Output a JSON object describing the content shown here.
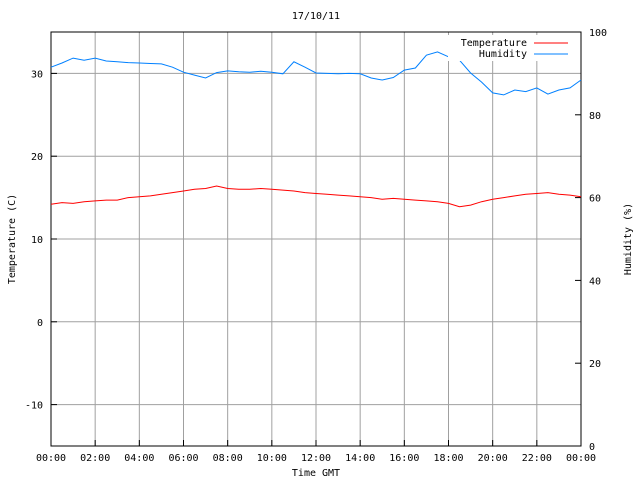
{
  "chart_data": {
    "type": "line",
    "title": "17/10/11",
    "xlabel": "Time GMT",
    "ylabel": "Temperature (C)",
    "y2label": "Humidity (%)",
    "xlim": [
      0,
      24
    ],
    "ylim": [
      -15,
      35
    ],
    "y2lim": [
      0,
      100
    ],
    "grid": true,
    "legend_position": "top-right",
    "x_ticks": [
      0,
      2,
      4,
      6,
      8,
      10,
      12,
      14,
      16,
      18,
      20,
      22,
      24
    ],
    "x_tick_labels": [
      "00:00",
      "02:00",
      "04:00",
      "06:00",
      "08:00",
      "10:00",
      "12:00",
      "14:00",
      "16:00",
      "18:00",
      "20:00",
      "22:00",
      "00:00"
    ],
    "y_ticks": [
      -10,
      0,
      10,
      20,
      30
    ],
    "y_tick_labels": [
      "-10",
      "0",
      "10",
      "20",
      "30"
    ],
    "y2_ticks": [
      0,
      20,
      40,
      60,
      80,
      100
    ],
    "y2_tick_labels": [
      "0",
      "20",
      "40",
      "60",
      "80",
      "100"
    ],
    "x": [
      0,
      0.5,
      1,
      1.5,
      2,
      2.5,
      3,
      3.5,
      4,
      4.5,
      5,
      5.5,
      6,
      6.5,
      7,
      7.5,
      8,
      8.5,
      9,
      9.5,
      10,
      10.5,
      11,
      11.5,
      12,
      12.5,
      13,
      13.5,
      14,
      14.5,
      15,
      15.5,
      16,
      16.5,
      17,
      17.5,
      18,
      18.5,
      19,
      19.5,
      20,
      20.5,
      21,
      21.5,
      22,
      22.5,
      23,
      23.5,
      24
    ],
    "series": [
      {
        "name": "Temperature",
        "axis": "left",
        "color": "#ff0000",
        "values": [
          14.2,
          14.4,
          14.3,
          14.5,
          14.6,
          14.7,
          14.7,
          15.0,
          15.1,
          15.2,
          15.4,
          15.6,
          15.8,
          16.0,
          16.1,
          16.4,
          16.1,
          16.0,
          16.0,
          16.1,
          16.0,
          15.9,
          15.8,
          15.6,
          15.5,
          15.4,
          15.3,
          15.2,
          15.1,
          15.0,
          14.8,
          14.9,
          14.8,
          14.7,
          14.6,
          14.5,
          14.3,
          13.9,
          14.1,
          14.5,
          14.8,
          15.0,
          15.2,
          15.4,
          15.5,
          15.6,
          15.4,
          15.3,
          15.1
        ]
      },
      {
        "name": "Humidity",
        "axis": "right",
        "color": "#0080ff",
        "values": [
          91.5,
          92.5,
          93.7,
          93.2,
          93.7,
          93.0,
          92.8,
          92.6,
          92.5,
          92.4,
          92.3,
          91.5,
          90.3,
          89.6,
          88.9,
          90.2,
          90.6,
          90.4,
          90.3,
          90.5,
          90.3,
          89.9,
          92.8,
          91.5,
          90.1,
          90.0,
          89.9,
          90.0,
          89.9,
          88.9,
          88.4,
          89.0,
          90.8,
          91.3,
          94.4,
          95.2,
          94.0,
          93.2,
          90.1,
          87.9,
          85.3,
          84.8,
          86.0,
          85.6,
          86.5,
          85.0,
          86.0,
          86.5,
          88.4
        ]
      }
    ]
  }
}
